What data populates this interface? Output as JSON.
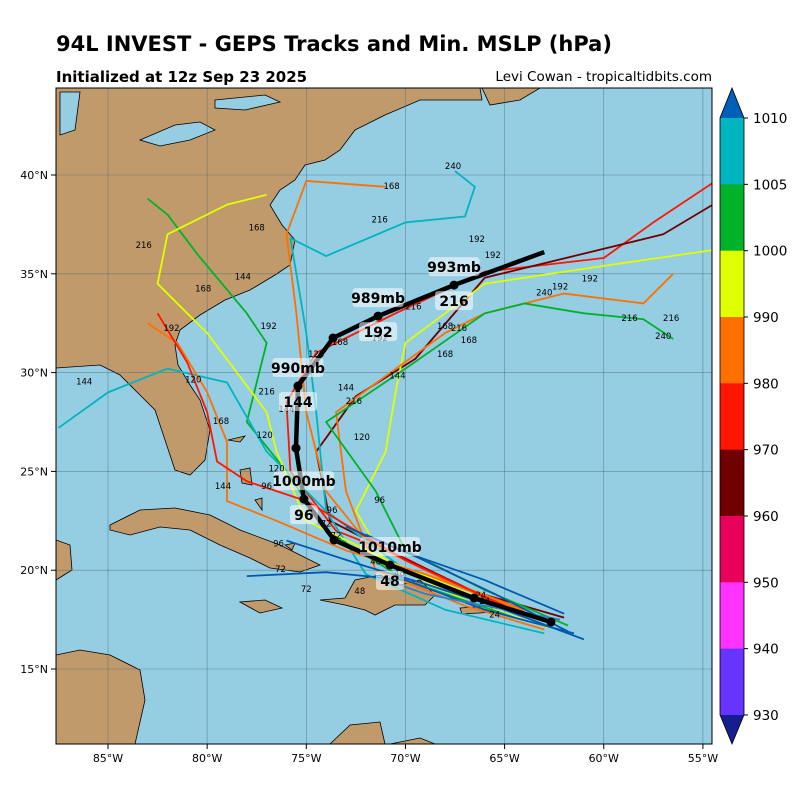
{
  "header": {
    "title": "94L INVEST - GEPS Tracks and Min. MSLP (hPa)",
    "subtitle": "Initialized at 12z Sep 23 2025",
    "credit": "Levi Cowan - tropicaltidbits.com"
  },
  "map": {
    "extent": {
      "lon": [
        -87.5,
        -54.5
      ],
      "lat": [
        11.3,
        44.3
      ]
    },
    "ocean_color": "#95cde3",
    "land_color": "#c19a6b",
    "lon_ticks": [
      {
        "v": -85,
        "label": "85°W"
      },
      {
        "v": -80,
        "label": "80°W"
      },
      {
        "v": -75,
        "label": "75°W"
      },
      {
        "v": -70,
        "label": "70°W"
      },
      {
        "v": -65,
        "label": "65°W"
      },
      {
        "v": -60,
        "label": "60°W"
      },
      {
        "v": -55,
        "label": "55°W"
      }
    ],
    "lat_ticks": [
      {
        "v": 40,
        "label": "40°N"
      },
      {
        "v": 35,
        "label": "35°N"
      },
      {
        "v": 30,
        "label": "30°N"
      },
      {
        "v": 25,
        "label": "25°N"
      },
      {
        "v": 20,
        "label": "20°N"
      },
      {
        "v": 15,
        "label": "15°N"
      }
    ]
  },
  "mean_track": {
    "points": [
      [
        -62.66,
        17.38
      ],
      [
        -66.54,
        18.59
      ],
      [
        -70.78,
        20.26
      ],
      [
        -73.6,
        21.53
      ],
      [
        -75.12,
        23.6
      ],
      [
        -75.52,
        26.18
      ],
      [
        -75.42,
        29.32
      ],
      [
        -73.65,
        31.75
      ],
      [
        -71.38,
        32.86
      ],
      [
        -67.55,
        34.43
      ],
      [
        -63.0,
        36.1
      ]
    ],
    "labels": [
      {
        "lon": -70.78,
        "lat": 20.26,
        "hour": "48",
        "mslp": "1010mb"
      },
      {
        "lon": -75.12,
        "lat": 23.6,
        "hour": "96",
        "mslp": "1000mb"
      },
      {
        "lon": -75.42,
        "lat": 29.32,
        "hour": "144",
        "mslp": "990mb"
      },
      {
        "lon": -71.38,
        "lat": 32.86,
        "hour": "192",
        "mslp": "989mb"
      },
      {
        "lon": -67.55,
        "lat": 34.43,
        "hour": "216",
        "mslp": "993mb"
      }
    ]
  },
  "ensemble_tracks": [
    {
      "color": "#ff1500",
      "points": [
        [
          -62.5,
          17.3
        ],
        [
          -66,
          18.6
        ],
        [
          -70,
          20.6
        ],
        [
          -73.5,
          22
        ],
        [
          -75.8,
          25
        ],
        [
          -76,
          28.5
        ],
        [
          -74.5,
          31
        ],
        [
          -70.5,
          33
        ],
        [
          -66,
          35.1
        ],
        [
          -60,
          35.8
        ],
        [
          -57.5,
          37.6
        ],
        [
          -54.5,
          39.6
        ]
      ]
    },
    {
      "color": "#700000",
      "points": [
        [
          -62,
          17.6
        ],
        [
          -66.5,
          18.9
        ],
        [
          -70.5,
          20.8
        ],
        [
          -73.8,
          22.5
        ],
        [
          -74.5,
          26
        ],
        [
          -72.5,
          28.8
        ],
        [
          -69.5,
          30.7
        ],
        [
          -66,
          34.8
        ],
        [
          -57,
          37
        ],
        [
          -54.5,
          38.5
        ]
      ]
    },
    {
      "color": "#e0ff00",
      "points": [
        [
          -62.8,
          17.1
        ],
        [
          -66.8,
          18.4
        ],
        [
          -71,
          20.4
        ],
        [
          -72.5,
          23
        ],
        [
          -71,
          26
        ],
        [
          -70.5,
          29
        ],
        [
          -70,
          31.5
        ],
        [
          -66,
          34.5
        ],
        [
          -60,
          35.4
        ],
        [
          -54.5,
          36.2
        ]
      ]
    },
    {
      "color": "#ff7000",
      "points": [
        [
          -63,
          17
        ],
        [
          -67,
          18.2
        ],
        [
          -71.5,
          20
        ],
        [
          -73,
          24
        ],
        [
          -73.5,
          28
        ],
        [
          -68,
          32
        ],
        [
          -66,
          33
        ],
        [
          -62,
          34
        ],
        [
          -58,
          33.5
        ],
        [
          -56.5,
          35
        ]
      ]
    },
    {
      "color": "#00b22a",
      "points": [
        [
          -61.8,
          17.2
        ],
        [
          -66,
          19
        ],
        [
          -70,
          21
        ],
        [
          -71.5,
          24
        ],
        [
          -74,
          27.5
        ],
        [
          -70,
          30.2
        ],
        [
          -66,
          33
        ],
        [
          -64,
          33.5
        ],
        [
          -61,
          33
        ],
        [
          -58,
          32.7
        ],
        [
          -56.5,
          31.7
        ]
      ]
    },
    {
      "color": "#ff7000",
      "points": [
        [
          -64,
          18
        ],
        [
          -68,
          19.5
        ],
        [
          -72,
          21.5
        ],
        [
          -74,
          24
        ],
        [
          -75,
          28
        ],
        [
          -75.5,
          33
        ],
        [
          -76,
          37
        ],
        [
          -75,
          39.7
        ],
        [
          -71,
          39.4
        ]
      ]
    },
    {
      "color": "#00b5c0",
      "points": [
        [
          -63,
          16.8
        ],
        [
          -68,
          18
        ],
        [
          -72,
          19.8
        ],
        [
          -74,
          23
        ],
        [
          -74.5,
          28
        ],
        [
          -75,
          32
        ],
        [
          -75.8,
          36.8
        ],
        [
          -74,
          35.9
        ],
        [
          -70,
          37.6
        ],
        [
          -67,
          37.9
        ],
        [
          -66.5,
          39.4
        ],
        [
          -67.5,
          40.2
        ]
      ]
    },
    {
      "color": "#00b22a",
      "points": [
        [
          -64.5,
          17.6
        ],
        [
          -70,
          19.5
        ],
        [
          -74,
          22
        ],
        [
          -76,
          25
        ],
        [
          -78,
          27.5
        ],
        [
          -77,
          31.5
        ],
        [
          -78,
          33
        ],
        [
          -80.5,
          36
        ],
        [
          -82,
          38
        ],
        [
          -83,
          38.8
        ]
      ]
    },
    {
      "color": "#00b5c0",
      "points": [
        [
          -65,
          18
        ],
        [
          -70,
          20
        ],
        [
          -74,
          23
        ],
        [
          -77,
          26
        ],
        [
          -79,
          29.5
        ],
        [
          -82,
          30.2
        ],
        [
          -85,
          29
        ],
        [
          -87.5,
          27.2
        ]
      ]
    },
    {
      "color": "#e0ff00",
      "points": [
        [
          -65.5,
          18.3
        ],
        [
          -70.5,
          20.3
        ],
        [
          -75,
          22.5
        ],
        [
          -76.5,
          26
        ],
        [
          -77,
          28
        ],
        [
          -80,
          32
        ],
        [
          -82.5,
          34.5
        ],
        [
          -82,
          37
        ],
        [
          -79,
          38.5
        ],
        [
          -77,
          39
        ]
      ]
    },
    {
      "color": "#ff7000",
      "points": [
        [
          -64,
          17.9
        ],
        [
          -69,
          19.8
        ],
        [
          -73,
          21
        ],
        [
          -76.5,
          22.5
        ],
        [
          -79,
          23.5
        ],
        [
          -79,
          26.5
        ],
        [
          -80,
          29
        ],
        [
          -81.5,
          31.5
        ],
        [
          -83,
          32.5
        ]
      ]
    },
    {
      "color": "#ff1500",
      "points": [
        [
          -65,
          18.2
        ],
        [
          -70,
          20.5
        ],
        [
          -75,
          23.5
        ],
        [
          -78,
          24.5
        ],
        [
          -79.5,
          25.5
        ],
        [
          -80,
          28
        ],
        [
          -81,
          30.5
        ],
        [
          -82.5,
          33
        ]
      ]
    },
    {
      "color": "#0058b0",
      "points": [
        [
          -61,
          16.5
        ],
        [
          -65,
          18
        ],
        [
          -69,
          19.3
        ],
        [
          -72,
          20.2
        ],
        [
          -76,
          21.5
        ]
      ]
    },
    {
      "color": "#0058b0",
      "points": [
        [
          -61.8,
          16.9
        ],
        [
          -65.5,
          18.8
        ],
        [
          -69.5,
          20.7
        ],
        [
          -72,
          21.8
        ]
      ]
    },
    {
      "color": "#0058b0",
      "points": [
        [
          -62,
          17.8
        ],
        [
          -66,
          19.5
        ],
        [
          -70,
          20.9
        ],
        [
          -73,
          22.2
        ]
      ]
    },
    {
      "color": "#0058b0",
      "points": [
        [
          -61.5,
          16.8
        ],
        [
          -66,
          18
        ],
        [
          -70,
          19.5
        ],
        [
          -74,
          19.9
        ],
        [
          -78,
          19.7
        ]
      ]
    },
    {
      "color": "#2a7fd0",
      "points": [
        [
          -62.2,
          17.5
        ],
        [
          -66,
          18.2
        ],
        [
          -69,
          18.8
        ],
        [
          -71,
          19.5
        ]
      ]
    }
  ],
  "hour_labels": [
    {
      "lon": -66,
      "lat": 18.3,
      "t": "24"
    },
    {
      "lon": -65.5,
      "lat": 17.6,
      "t": "24"
    },
    {
      "lon": -66.2,
      "lat": 18.6,
      "t": "24"
    },
    {
      "lon": -70.3,
      "lat": 19.7,
      "t": "48"
    },
    {
      "lon": -71.5,
      "lat": 20.3,
      "t": "48"
    },
    {
      "lon": -72.3,
      "lat": 18.8,
      "t": "48"
    },
    {
      "lon": -73.5,
      "lat": 21.6,
      "t": "72"
    },
    {
      "lon": -74,
      "lat": 22.2,
      "t": "72"
    },
    {
      "lon": -76.3,
      "lat": 19.9,
      "t": "72"
    },
    {
      "lon": -75,
      "lat": 18.9,
      "t": "72"
    },
    {
      "lon": -77,
      "lat": 24.1,
      "t": "96"
    },
    {
      "lon": -73.7,
      "lat": 22.9,
      "t": "96"
    },
    {
      "lon": -71.3,
      "lat": 23.4,
      "t": "96"
    },
    {
      "lon": -76.4,
      "lat": 21.2,
      "t": "96"
    },
    {
      "lon": -76.5,
      "lat": 25,
      "t": "120"
    },
    {
      "lon": -72.2,
      "lat": 26.6,
      "t": "120"
    },
    {
      "lon": -77.1,
      "lat": 26.7,
      "t": "120"
    },
    {
      "lon": -74.5,
      "lat": 30.8,
      "t": "120"
    },
    {
      "lon": -80.7,
      "lat": 29.5,
      "t": "120"
    },
    {
      "lon": -76,
      "lat": 28,
      "t": "144"
    },
    {
      "lon": -73,
      "lat": 29.1,
      "t": "144"
    },
    {
      "lon": -70.4,
      "lat": 29.7,
      "t": "144"
    },
    {
      "lon": -78.2,
      "lat": 34.7,
      "t": "144"
    },
    {
      "lon": -79.2,
      "lat": 24.1,
      "t": "144"
    },
    {
      "lon": -86.2,
      "lat": 29.4,
      "t": "144"
    },
    {
      "lon": -73.3,
      "lat": 31.4,
      "t": "168"
    },
    {
      "lon": -68,
      "lat": 32.2,
      "t": "168"
    },
    {
      "lon": -66.8,
      "lat": 31.5,
      "t": "168"
    },
    {
      "lon": -68,
      "lat": 30.8,
      "t": "168"
    },
    {
      "lon": -80.2,
      "lat": 34.1,
      "t": "168"
    },
    {
      "lon": -77.5,
      "lat": 37.2,
      "t": "168"
    },
    {
      "lon": -79.3,
      "lat": 27.4,
      "t": "168"
    },
    {
      "lon": -70.7,
      "lat": 39.3,
      "t": "168"
    },
    {
      "lon": -71.3,
      "lat": 31.6,
      "t": "192"
    },
    {
      "lon": -81.8,
      "lat": 32.1,
      "t": "192"
    },
    {
      "lon": -76.9,
      "lat": 32.2,
      "t": "192"
    },
    {
      "lon": -65.6,
      "lat": 35.8,
      "t": "192"
    },
    {
      "lon": -66.4,
      "lat": 36.6,
      "t": "192"
    },
    {
      "lon": -62.2,
      "lat": 34.2,
      "t": "192"
    },
    {
      "lon": -60.7,
      "lat": 34.6,
      "t": "192"
    },
    {
      "lon": -72.6,
      "lat": 28.4,
      "t": "216"
    },
    {
      "lon": -69.6,
      "lat": 33.2,
      "t": "216"
    },
    {
      "lon": -67.3,
      "lat": 32.1,
      "t": "216"
    },
    {
      "lon": -71.3,
      "lat": 37.6,
      "t": "216"
    },
    {
      "lon": -83.2,
      "lat": 36.3,
      "t": "216"
    },
    {
      "lon": -58.7,
      "lat": 32.6,
      "t": "216"
    },
    {
      "lon": -56.6,
      "lat": 32.6,
      "t": "216"
    },
    {
      "lon": -77,
      "lat": 28.9,
      "t": "216"
    },
    {
      "lon": -63,
      "lat": 33.9,
      "t": "240"
    },
    {
      "lon": -57,
      "lat": 31.7,
      "t": "240"
    },
    {
      "lon": -67.6,
      "lat": 40.3,
      "t": "240"
    }
  ],
  "colorbar": {
    "colors": [
      "#6633ff",
      "#ff33ff",
      "#e8005a",
      "#700000",
      "#ff1500",
      "#ff7000",
      "#e0ff00",
      "#00b22a",
      "#00b5c0"
    ],
    "under_color": "#141e8c",
    "over_color": "#005fb8",
    "ticks": [
      "930",
      "940",
      "950",
      "960",
      "970",
      "980",
      "990",
      "1000",
      "1005",
      "1010"
    ]
  }
}
